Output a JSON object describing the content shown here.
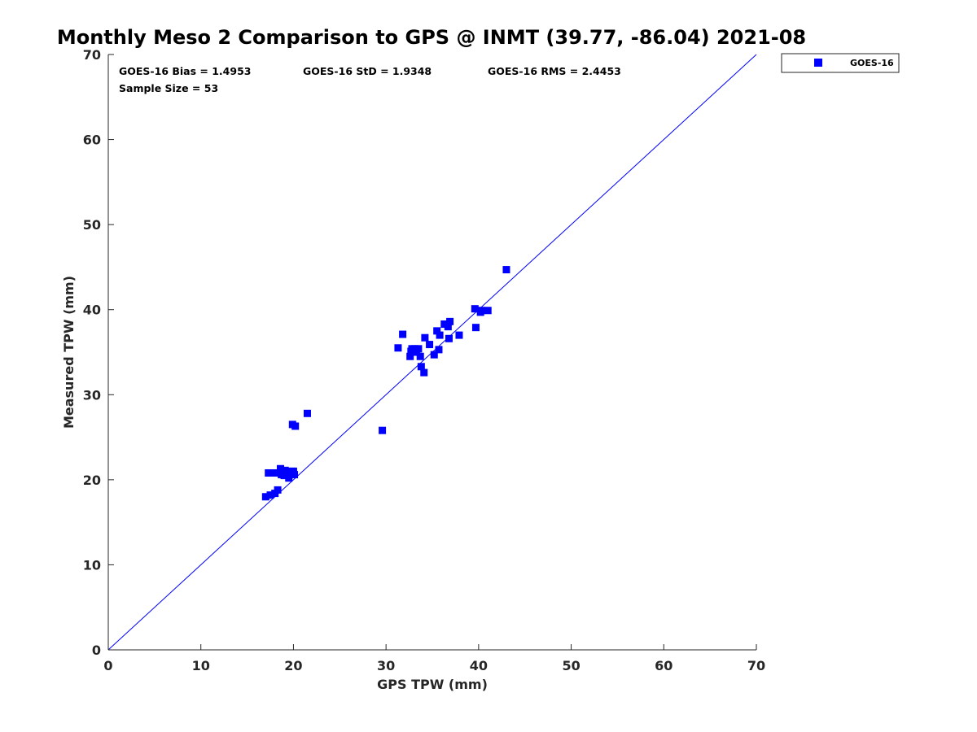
{
  "chart_data": {
    "type": "scatter",
    "title": "Monthly Meso 2 Comparison to GPS @ INMT (39.77, -86.04) 2021-08",
    "xlabel": "GPS TPW (mm)",
    "ylabel": "Measured TPW (mm)",
    "xlim": [
      0,
      70
    ],
    "ylim": [
      0,
      70
    ],
    "xticks": [
      "0",
      "10",
      "20",
      "30",
      "40",
      "50",
      "60",
      "70"
    ],
    "yticks": [
      "0",
      "10",
      "20",
      "30",
      "40",
      "50",
      "60",
      "70"
    ],
    "stats": {
      "bias": "GOES-16 Bias = 1.4953",
      "std": "GOES-16 StD = 1.9348",
      "rms": "GOES-16 RMS = 2.4453",
      "sample": "Sample Size = 53"
    },
    "legend": {
      "position": "top-right",
      "entries": [
        "GOES-16"
      ]
    },
    "reference_line": {
      "label": "1:1",
      "from": [
        0,
        0
      ],
      "to": [
        70,
        70
      ],
      "color": "#0000ff"
    },
    "series": [
      {
        "name": "GOES-16",
        "color": "#0000ff",
        "marker": "square",
        "points": [
          [
            17.0,
            18.0
          ],
          [
            17.5,
            18.2
          ],
          [
            18.0,
            18.4
          ],
          [
            18.3,
            18.8
          ],
          [
            17.3,
            20.8
          ],
          [
            17.8,
            20.8
          ],
          [
            18.1,
            20.8
          ],
          [
            18.4,
            20.8
          ],
          [
            18.6,
            21.3
          ],
          [
            18.7,
            20.6
          ],
          [
            18.9,
            20.9
          ],
          [
            19.0,
            20.5
          ],
          [
            19.1,
            21.1
          ],
          [
            19.3,
            20.8
          ],
          [
            19.5,
            20.2
          ],
          [
            19.6,
            20.6
          ],
          [
            19.8,
            21.0
          ],
          [
            20.0,
            21.0
          ],
          [
            20.1,
            20.6
          ],
          [
            19.9,
            26.5
          ],
          [
            20.2,
            26.3
          ],
          [
            21.5,
            27.8
          ],
          [
            29.6,
            25.8
          ],
          [
            31.3,
            35.5
          ],
          [
            31.8,
            37.1
          ],
          [
            32.6,
            34.5
          ],
          [
            32.7,
            35.1
          ],
          [
            32.8,
            35.4
          ],
          [
            33.1,
            35.4
          ],
          [
            33.3,
            35.0
          ],
          [
            33.5,
            35.4
          ],
          [
            33.7,
            34.5
          ],
          [
            33.8,
            33.3
          ],
          [
            34.1,
            32.6
          ],
          [
            34.2,
            36.7
          ],
          [
            34.7,
            35.9
          ],
          [
            35.2,
            34.7
          ],
          [
            35.5,
            37.5
          ],
          [
            35.7,
            35.3
          ],
          [
            35.8,
            37.0
          ],
          [
            36.3,
            38.3
          ],
          [
            36.7,
            38.0
          ],
          [
            36.8,
            36.6
          ],
          [
            36.9,
            38.6
          ],
          [
            37.9,
            37.0
          ],
          [
            39.6,
            40.1
          ],
          [
            39.7,
            37.9
          ],
          [
            40.2,
            39.7
          ],
          [
            40.3,
            39.9
          ],
          [
            41.0,
            39.9
          ],
          [
            43.0,
            44.7
          ],
          [
            18.9,
            20.7
          ],
          [
            19.4,
            20.9
          ]
        ]
      }
    ]
  }
}
